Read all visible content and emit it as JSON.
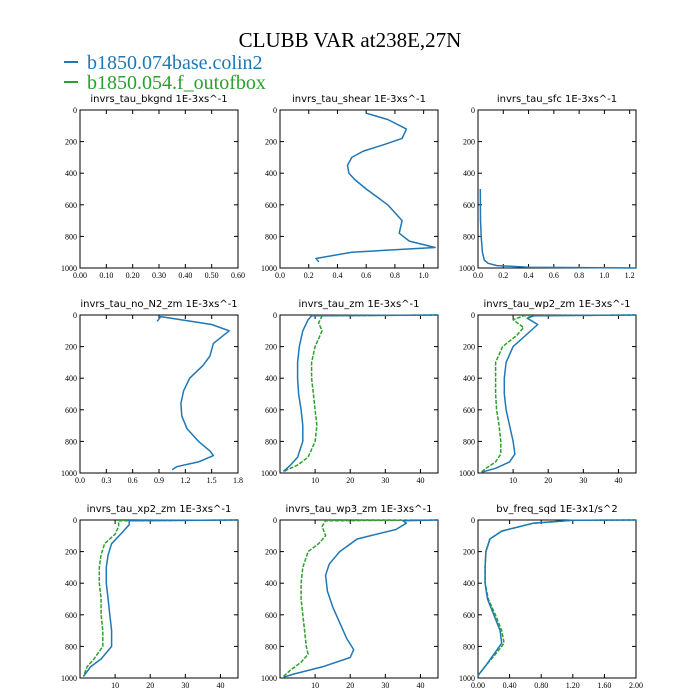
{
  "title": "CLUBB VAR at238E,27N",
  "legend": [
    {
      "name": "b1850.074base.colin2",
      "color": "#1f77b4"
    },
    {
      "name": "b1850.054.f_outofbox",
      "color": "#2ca02c"
    }
  ],
  "chart_data": [
    {
      "type": "line",
      "title": "invrs_tau_bkgnd   1E-3xs^-1",
      "xlim": [
        0,
        0.6
      ],
      "ylim": [
        1000,
        0
      ],
      "xticks": [
        "0.00",
        "0.10",
        "0.20",
        "0.30",
        "0.40",
        "0.50",
        "0.60"
      ],
      "yticks": [
        "0",
        "200",
        "400",
        "600",
        "800",
        "1000"
      ],
      "series": []
    },
    {
      "type": "line",
      "title": "invrs_tau_shear   1E-3xs^-1",
      "xlim": [
        0,
        1.1
      ],
      "ylim": [
        1000,
        0
      ],
      "xticks": [
        "0.0",
        "0.2",
        "0.4",
        "0.6",
        "0.8",
        "1.0"
      ],
      "yticks": [
        "0",
        "200",
        "400",
        "600",
        "800",
        "1000"
      ],
      "series": [
        {
          "color": "#1f77b4",
          "x": [
            0.27,
            0.25,
            0.5,
            1.08,
            0.9,
            0.83,
            0.85,
            0.75,
            0.6,
            0.52,
            0.48,
            0.47,
            0.5,
            0.58,
            0.72,
            0.85,
            0.88,
            0.75,
            0.6
          ],
          "y": [
            960,
            940,
            900,
            870,
            830,
            780,
            700,
            600,
            500,
            440,
            400,
            350,
            300,
            260,
            220,
            180,
            120,
            60,
            20
          ]
        }
      ]
    },
    {
      "type": "line",
      "title": "invrs_tau_sfc   1E-3xs^-1",
      "xlim": [
        0,
        1.25
      ],
      "ylim": [
        1000,
        0
      ],
      "xticks": [
        "0.0",
        "0.2",
        "0.4",
        "0.6",
        "0.8",
        "1.0",
        "1.2"
      ],
      "yticks": [
        "0",
        "200",
        "400",
        "600",
        "800",
        "1000"
      ],
      "series": [
        {
          "color": "#1f77b4",
          "x": [
            1.25,
            0.4,
            0.15,
            0.08,
            0.05,
            0.035,
            0.025,
            0.02,
            0.018
          ],
          "y": [
            1000,
            995,
            985,
            970,
            950,
            900,
            800,
            700,
            500
          ]
        }
      ]
    },
    {
      "type": "line",
      "title": "invrs_tau_no_N2_zm   1E-3xs^-1",
      "xlim": [
        0,
        1.8
      ],
      "ylim": [
        1000,
        0
      ],
      "xticks": [
        "0.0",
        "0.3",
        "0.6",
        "0.9",
        "1.2",
        "1.5",
        "1.8"
      ],
      "yticks": [
        "0",
        "200",
        "400",
        "600",
        "800",
        "1000"
      ],
      "series": [
        {
          "color": "#1f77b4",
          "x": [
            0.88,
            0.92,
            1.5,
            1.7,
            1.52,
            1.48,
            1.4,
            1.25,
            1.18,
            1.15,
            1.16,
            1.22,
            1.35,
            1.48,
            1.52,
            1.35,
            1.1,
            1.05
          ],
          "y": [
            40,
            10,
            60,
            100,
            180,
            260,
            320,
            400,
            480,
            560,
            640,
            720,
            800,
            860,
            890,
            930,
            960,
            980
          ]
        }
      ]
    },
    {
      "type": "line",
      "title": "invrs_tau_zm   1E-3xs^-1",
      "xlim": [
        0,
        45
      ],
      "ylim": [
        1000,
        0
      ],
      "xticks": [
        "10",
        "20",
        "30",
        "40"
      ],
      "yticks": [
        "0",
        "200",
        "400",
        "600",
        "800",
        "1000"
      ],
      "series": [
        {
          "color": "#1f77b4",
          "x": [
            45,
            9,
            8,
            6.5,
            5.5,
            5,
            5,
            5.3,
            6,
            6.5,
            6.5,
            5,
            3,
            1
          ],
          "y": [
            0,
            5,
            30,
            100,
            200,
            300,
            400,
            500,
            600,
            700,
            800,
            900,
            950,
            990
          ]
        },
        {
          "color": "#2ca02c",
          "x": [
            45,
            12,
            11,
            12,
            10,
            9,
            9,
            9.5,
            10,
            10.5,
            10,
            8,
            5,
            2,
            1
          ],
          "y": [
            0,
            5,
            50,
            100,
            200,
            300,
            400,
            500,
            600,
            700,
            800,
            900,
            950,
            980,
            995
          ]
        }
      ]
    },
    {
      "type": "line",
      "title": "invrs_tau_wp2_zm   1E-3xs^-1",
      "xlim": [
        0,
        45
      ],
      "ylim": [
        1000,
        0
      ],
      "xticks": [
        "10",
        "20",
        "30",
        "40"
      ],
      "yticks": [
        "0",
        "200",
        "400",
        "600",
        "800",
        "1000"
      ],
      "series": [
        {
          "color": "#1f77b4",
          "x": [
            45,
            16,
            14,
            17,
            14,
            10,
            8,
            7.5,
            7.5,
            8,
            9,
            10,
            10.5,
            9,
            5,
            1
          ],
          "y": [
            0,
            5,
            20,
            60,
            120,
            200,
            300,
            400,
            500,
            600,
            700,
            800,
            880,
            930,
            970,
            995
          ]
        },
        {
          "color": "#2ca02c",
          "x": [
            45,
            13,
            10,
            13,
            11,
            7,
            5,
            5,
            5,
            5.3,
            6,
            6.5,
            6.5,
            5,
            2,
            1
          ],
          "y": [
            0,
            5,
            30,
            80,
            130,
            200,
            300,
            400,
            500,
            600,
            700,
            800,
            880,
            930,
            975,
            995
          ]
        }
      ]
    },
    {
      "type": "line",
      "title": "invrs_tau_xp2_zm   1E-3xs^-1",
      "xlim": [
        0,
        45
      ],
      "ylim": [
        1000,
        0
      ],
      "xticks": [
        "10",
        "20",
        "30",
        "40"
      ],
      "yticks": [
        "0",
        "200",
        "400",
        "600",
        "800",
        "1000"
      ],
      "series": [
        {
          "color": "#1f77b4",
          "x": [
            45,
            14,
            14,
            12,
            9,
            8,
            7.5,
            7.5,
            8,
            8.5,
            9,
            9,
            6,
            3,
            1
          ],
          "y": [
            0,
            5,
            30,
            80,
            150,
            220,
            300,
            400,
            500,
            600,
            700,
            800,
            880,
            930,
            990
          ]
        },
        {
          "color": "#2ca02c",
          "x": [
            45,
            11,
            11,
            10,
            7,
            6,
            5.5,
            5.5,
            6,
            6,
            6.5,
            6.5,
            4,
            2,
            1
          ],
          "y": [
            0,
            5,
            40,
            90,
            150,
            220,
            300,
            400,
            500,
            600,
            700,
            800,
            880,
            930,
            990
          ]
        }
      ]
    },
    {
      "type": "line",
      "title": "invrs_tau_wp3_zm   1E-3xs^-1",
      "xlim": [
        0,
        45
      ],
      "ylim": [
        1000,
        0
      ],
      "xticks": [
        "10",
        "20",
        "30",
        "40"
      ],
      "yticks": [
        "0",
        "200",
        "400",
        "600",
        "800",
        "1000"
      ],
      "series": [
        {
          "color": "#1f77b4",
          "x": [
            45,
            35,
            36,
            33,
            22,
            17,
            14,
            13,
            13.5,
            15,
            17,
            19,
            21,
            20,
            12,
            4,
            1
          ],
          "y": [
            0,
            5,
            20,
            60,
            120,
            200,
            280,
            350,
            450,
            550,
            650,
            750,
            820,
            870,
            930,
            975,
            995
          ]
        },
        {
          "color": "#2ca02c",
          "x": [
            45,
            13,
            12,
            13,
            11,
            8,
            6.5,
            6,
            6,
            6.5,
            7,
            7.5,
            8,
            6,
            3,
            1
          ],
          "y": [
            0,
            5,
            40,
            100,
            150,
            200,
            300,
            400,
            500,
            600,
            700,
            800,
            850,
            900,
            950,
            990
          ]
        }
      ]
    },
    {
      "type": "line",
      "title": "bv_freq_sqd   1E-3x1/s^2",
      "xlim": [
        0,
        2.0
      ],
      "ylim": [
        1000,
        0
      ],
      "xticks": [
        "0.00",
        "0.40",
        "0.80",
        "1.20",
        "1.60",
        "2.00"
      ],
      "yticks": [
        "0",
        "200",
        "400",
        "600",
        "800",
        "1000"
      ],
      "series": [
        {
          "color": "#1f77b4",
          "x": [
            2.0,
            1.2,
            0.7,
            0.3,
            0.15,
            0.1,
            0.09,
            0.09,
            0.12,
            0.2,
            0.28,
            0.3,
            0.2,
            0.1,
            0.0
          ],
          "y": [
            0,
            2,
            20,
            70,
            120,
            200,
            300,
            400,
            500,
            600,
            700,
            780,
            850,
            920,
            985
          ]
        },
        {
          "color": "#2ca02c",
          "x": [
            2.0,
            1.2,
            0.7,
            0.3,
            0.15,
            0.1,
            0.09,
            0.09,
            0.13,
            0.22,
            0.3,
            0.33,
            0.22,
            0.1,
            0.0
          ],
          "y": [
            0,
            2,
            20,
            70,
            120,
            200,
            300,
            400,
            500,
            600,
            700,
            780,
            850,
            920,
            985
          ]
        }
      ]
    }
  ]
}
